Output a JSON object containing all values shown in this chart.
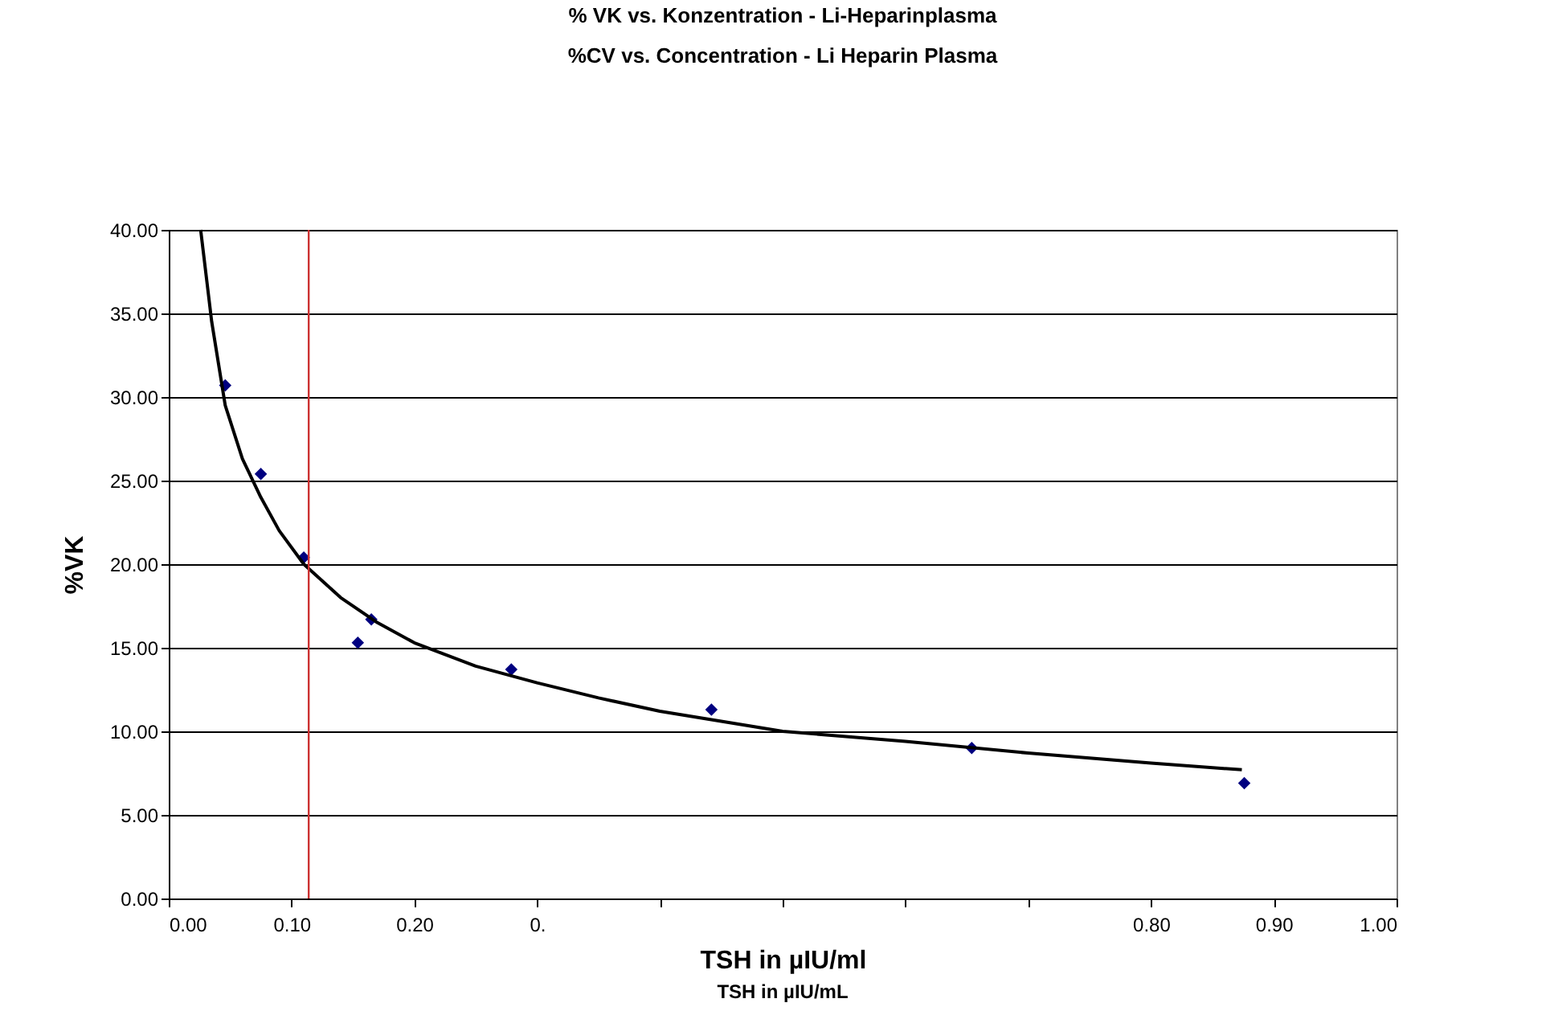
{
  "chart_data": {
    "type": "scatter",
    "title": "% VK vs. Konzentration - Li-Heparinplasma",
    "subtitle": "%CV vs. Concentration - Li Heparin Plasma",
    "xlabel": "TSH in µIU/ml",
    "ylabel": "%VK",
    "annotations": [
      "TSH in µIU/mL"
    ],
    "xlim": [
      0,
      1
    ],
    "ylim": [
      0,
      40
    ],
    "xticks": [
      {
        "value": 0,
        "label": "0.00"
      },
      {
        "value": 0.1,
        "label": "0.10"
      },
      {
        "value": 0.2,
        "label": "0.20"
      },
      {
        "value": 0.3,
        "label": "0."
      },
      {
        "value": 0.4,
        "label": null
      },
      {
        "value": 0.5,
        "label": null
      },
      {
        "value": 0.6,
        "label": null
      },
      {
        "value": 0.7,
        "label": null
      },
      {
        "value": 0.8,
        "label": "0.80"
      },
      {
        "value": 0.9,
        "label": "0.90"
      },
      {
        "value": 1,
        "label": "1.00"
      }
    ],
    "yticks": [
      {
        "value": 0,
        "label": "0.00"
      },
      {
        "value": 5,
        "label": "5.00"
      },
      {
        "value": 10,
        "label": "10.00"
      },
      {
        "value": 15,
        "label": "15.00"
      },
      {
        "value": 20,
        "label": "20.00"
      },
      {
        "value": 25,
        "label": "25.00"
      },
      {
        "value": 30,
        "label": "30.00"
      },
      {
        "value": 35,
        "label": "35.00"
      },
      {
        "value": 40,
        "label": "40.00"
      }
    ],
    "grid": "y",
    "marker": "diamond",
    "series": [
      {
        "color": "#000080",
        "x": [
          0.046,
          0.075,
          0.11,
          0.154,
          0.165,
          0.279,
          0.442,
          0.654,
          0.876
        ],
        "values": [
          30.7,
          25.4,
          20.4,
          15.3,
          16.7,
          13.7,
          11.3,
          9.0,
          6.9
        ]
      },
      {
        "type": "line",
        "color": "#000000",
        "marker": "none",
        "x": [
          0.026,
          0.035,
          0.046,
          0.06,
          0.075,
          0.09,
          0.11,
          0.14,
          0.17,
          0.2,
          0.25,
          0.3,
          0.35,
          0.4,
          0.5,
          0.6,
          0.7,
          0.8,
          0.874
        ],
        "values": [
          40,
          34.5,
          29.5,
          26.3,
          24,
          22,
          20,
          18,
          16.5,
          15.3,
          13.9,
          12.9,
          12,
          11.2,
          10,
          9.4,
          8.7,
          8.1,
          7.7
        ]
      }
    ],
    "ref_lines": [
      {
        "axis": "x",
        "value": 0.114,
        "color": "#cc3333",
        "line_style": "solid"
      }
    ]
  }
}
